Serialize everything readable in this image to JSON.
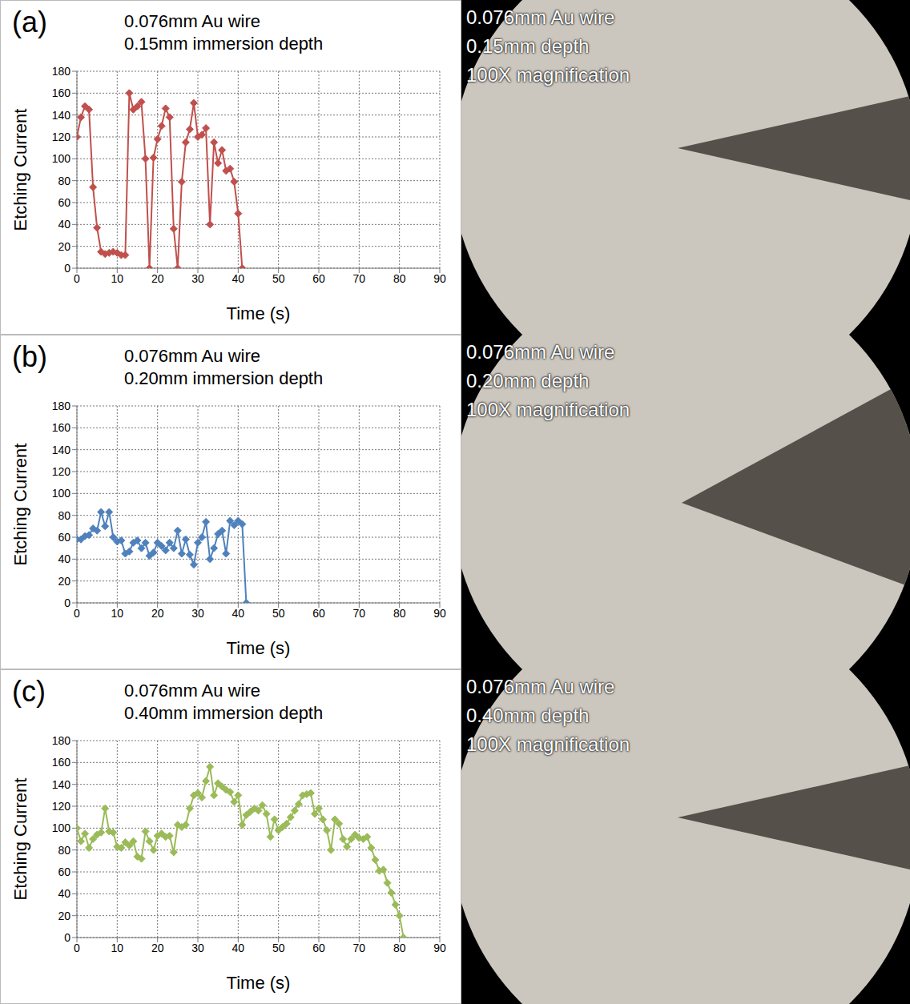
{
  "chart_data": [
    {
      "type": "line",
      "panel": "(a)",
      "title": "0.076mm Au wire",
      "subtitle": "0.15mm immersion depth",
      "x_label": "Time (s)",
      "y_label": "Etching Current",
      "color": "#c0504d",
      "marker": "diamond",
      "grid": true,
      "xlim": [
        0,
        90
      ],
      "xticks": [
        0,
        10,
        20,
        30,
        40,
        50,
        60,
        70,
        80,
        90
      ],
      "ylim": [
        0,
        180
      ],
      "yticks": [
        0,
        20,
        40,
        60,
        80,
        100,
        120,
        140,
        160,
        180
      ],
      "x": [
        0,
        1,
        2,
        3,
        4,
        5,
        6,
        7,
        8,
        9,
        10,
        11,
        12,
        13,
        14,
        15,
        16,
        17,
        18,
        19,
        20,
        21,
        22,
        23,
        24,
        25,
        26,
        27,
        28,
        29,
        30,
        31,
        32,
        33,
        34,
        35,
        36,
        37,
        38,
        39,
        40,
        41
      ],
      "values": [
        120,
        138,
        148,
        145,
        74,
        37,
        15,
        13,
        14,
        15,
        14,
        12,
        12,
        160,
        145,
        148,
        152,
        100,
        0,
        101,
        118,
        130,
        146,
        138,
        36,
        0,
        79,
        115,
        127,
        151,
        120,
        122,
        128,
        40,
        115,
        96,
        108,
        89,
        91,
        79,
        50,
        0
      ]
    },
    {
      "type": "line",
      "panel": "(b)",
      "title": "0.076mm Au wire",
      "subtitle": "0.20mm immersion depth",
      "x_label": "Time (s)",
      "y_label": "Etching Current",
      "color": "#4f81bd",
      "marker": "diamond",
      "grid": true,
      "xlim": [
        0,
        90
      ],
      "xticks": [
        0,
        10,
        20,
        30,
        40,
        50,
        60,
        70,
        80,
        90
      ],
      "ylim": [
        0,
        180
      ],
      "yticks": [
        0,
        20,
        40,
        60,
        80,
        100,
        120,
        140,
        160,
        180
      ],
      "x": [
        0,
        1,
        2,
        3,
        4,
        5,
        6,
        7,
        8,
        9,
        10,
        11,
        12,
        13,
        14,
        15,
        16,
        17,
        18,
        19,
        20,
        21,
        22,
        23,
        24,
        25,
        26,
        27,
        28,
        29,
        30,
        31,
        32,
        33,
        34,
        35,
        36,
        37,
        38,
        39,
        40,
        41,
        42
      ],
      "values": [
        58,
        58,
        61,
        62,
        68,
        66,
        83,
        70,
        83,
        60,
        56,
        57,
        45,
        47,
        55,
        57,
        50,
        55,
        43,
        46,
        55,
        52,
        48,
        55,
        50,
        66,
        45,
        58,
        44,
        35,
        55,
        60,
        74,
        40,
        50,
        63,
        66,
        45,
        75,
        71,
        75,
        72,
        0
      ]
    },
    {
      "type": "line",
      "panel": "(c)",
      "title": "0.076mm Au wire",
      "subtitle": "0.40mm immersion depth",
      "x_label": "Time (s)",
      "y_label": "Etching Current",
      "color": "#9bbb59",
      "marker": "diamond",
      "grid": true,
      "xlim": [
        0,
        90
      ],
      "xticks": [
        0,
        10,
        20,
        30,
        40,
        50,
        60,
        70,
        80,
        90
      ],
      "ylim": [
        0,
        180
      ],
      "yticks": [
        0,
        20,
        40,
        60,
        80,
        100,
        120,
        140,
        160,
        180
      ],
      "x": [
        0,
        1,
        2,
        3,
        4,
        5,
        6,
        7,
        8,
        9,
        10,
        11,
        12,
        13,
        14,
        15,
        16,
        17,
        18,
        19,
        20,
        21,
        22,
        23,
        24,
        25,
        26,
        27,
        28,
        29,
        30,
        31,
        32,
        33,
        34,
        35,
        36,
        37,
        38,
        39,
        40,
        41,
        42,
        43,
        44,
        45,
        46,
        47,
        48,
        49,
        50,
        51,
        52,
        53,
        54,
        55,
        56,
        57,
        58,
        59,
        60,
        61,
        62,
        63,
        64,
        65,
        66,
        67,
        68,
        69,
        70,
        71,
        72,
        73,
        74,
        75,
        76,
        77,
        78,
        79,
        80,
        81
      ],
      "values": [
        100,
        88,
        95,
        82,
        90,
        94,
        96,
        118,
        97,
        96,
        83,
        82,
        87,
        84,
        88,
        74,
        72,
        97,
        88,
        80,
        93,
        95,
        92,
        93,
        78,
        103,
        101,
        103,
        118,
        130,
        132,
        128,
        143,
        156,
        130,
        141,
        138,
        135,
        133,
        124,
        130,
        103,
        112,
        115,
        118,
        116,
        121,
        113,
        92,
        108,
        98,
        101,
        104,
        110,
        116,
        122,
        130,
        131,
        132,
        113,
        118,
        108,
        98,
        80,
        108,
        104,
        90,
        83,
        90,
        94,
        91,
        90,
        92,
        82,
        71,
        61,
        62,
        50,
        41,
        30,
        20,
        0
      ]
    }
  ],
  "images": [
    {
      "lines": [
        "0.076mm Au wire",
        "0.15mm depth",
        "100X magnification"
      ]
    },
    {
      "lines": [
        "0.076mm Au wire",
        "0.20mm depth",
        "100X magnification"
      ]
    },
    {
      "lines": [
        "0.076mm Au wire",
        "0.40mm depth",
        "100X magnification"
      ]
    }
  ]
}
